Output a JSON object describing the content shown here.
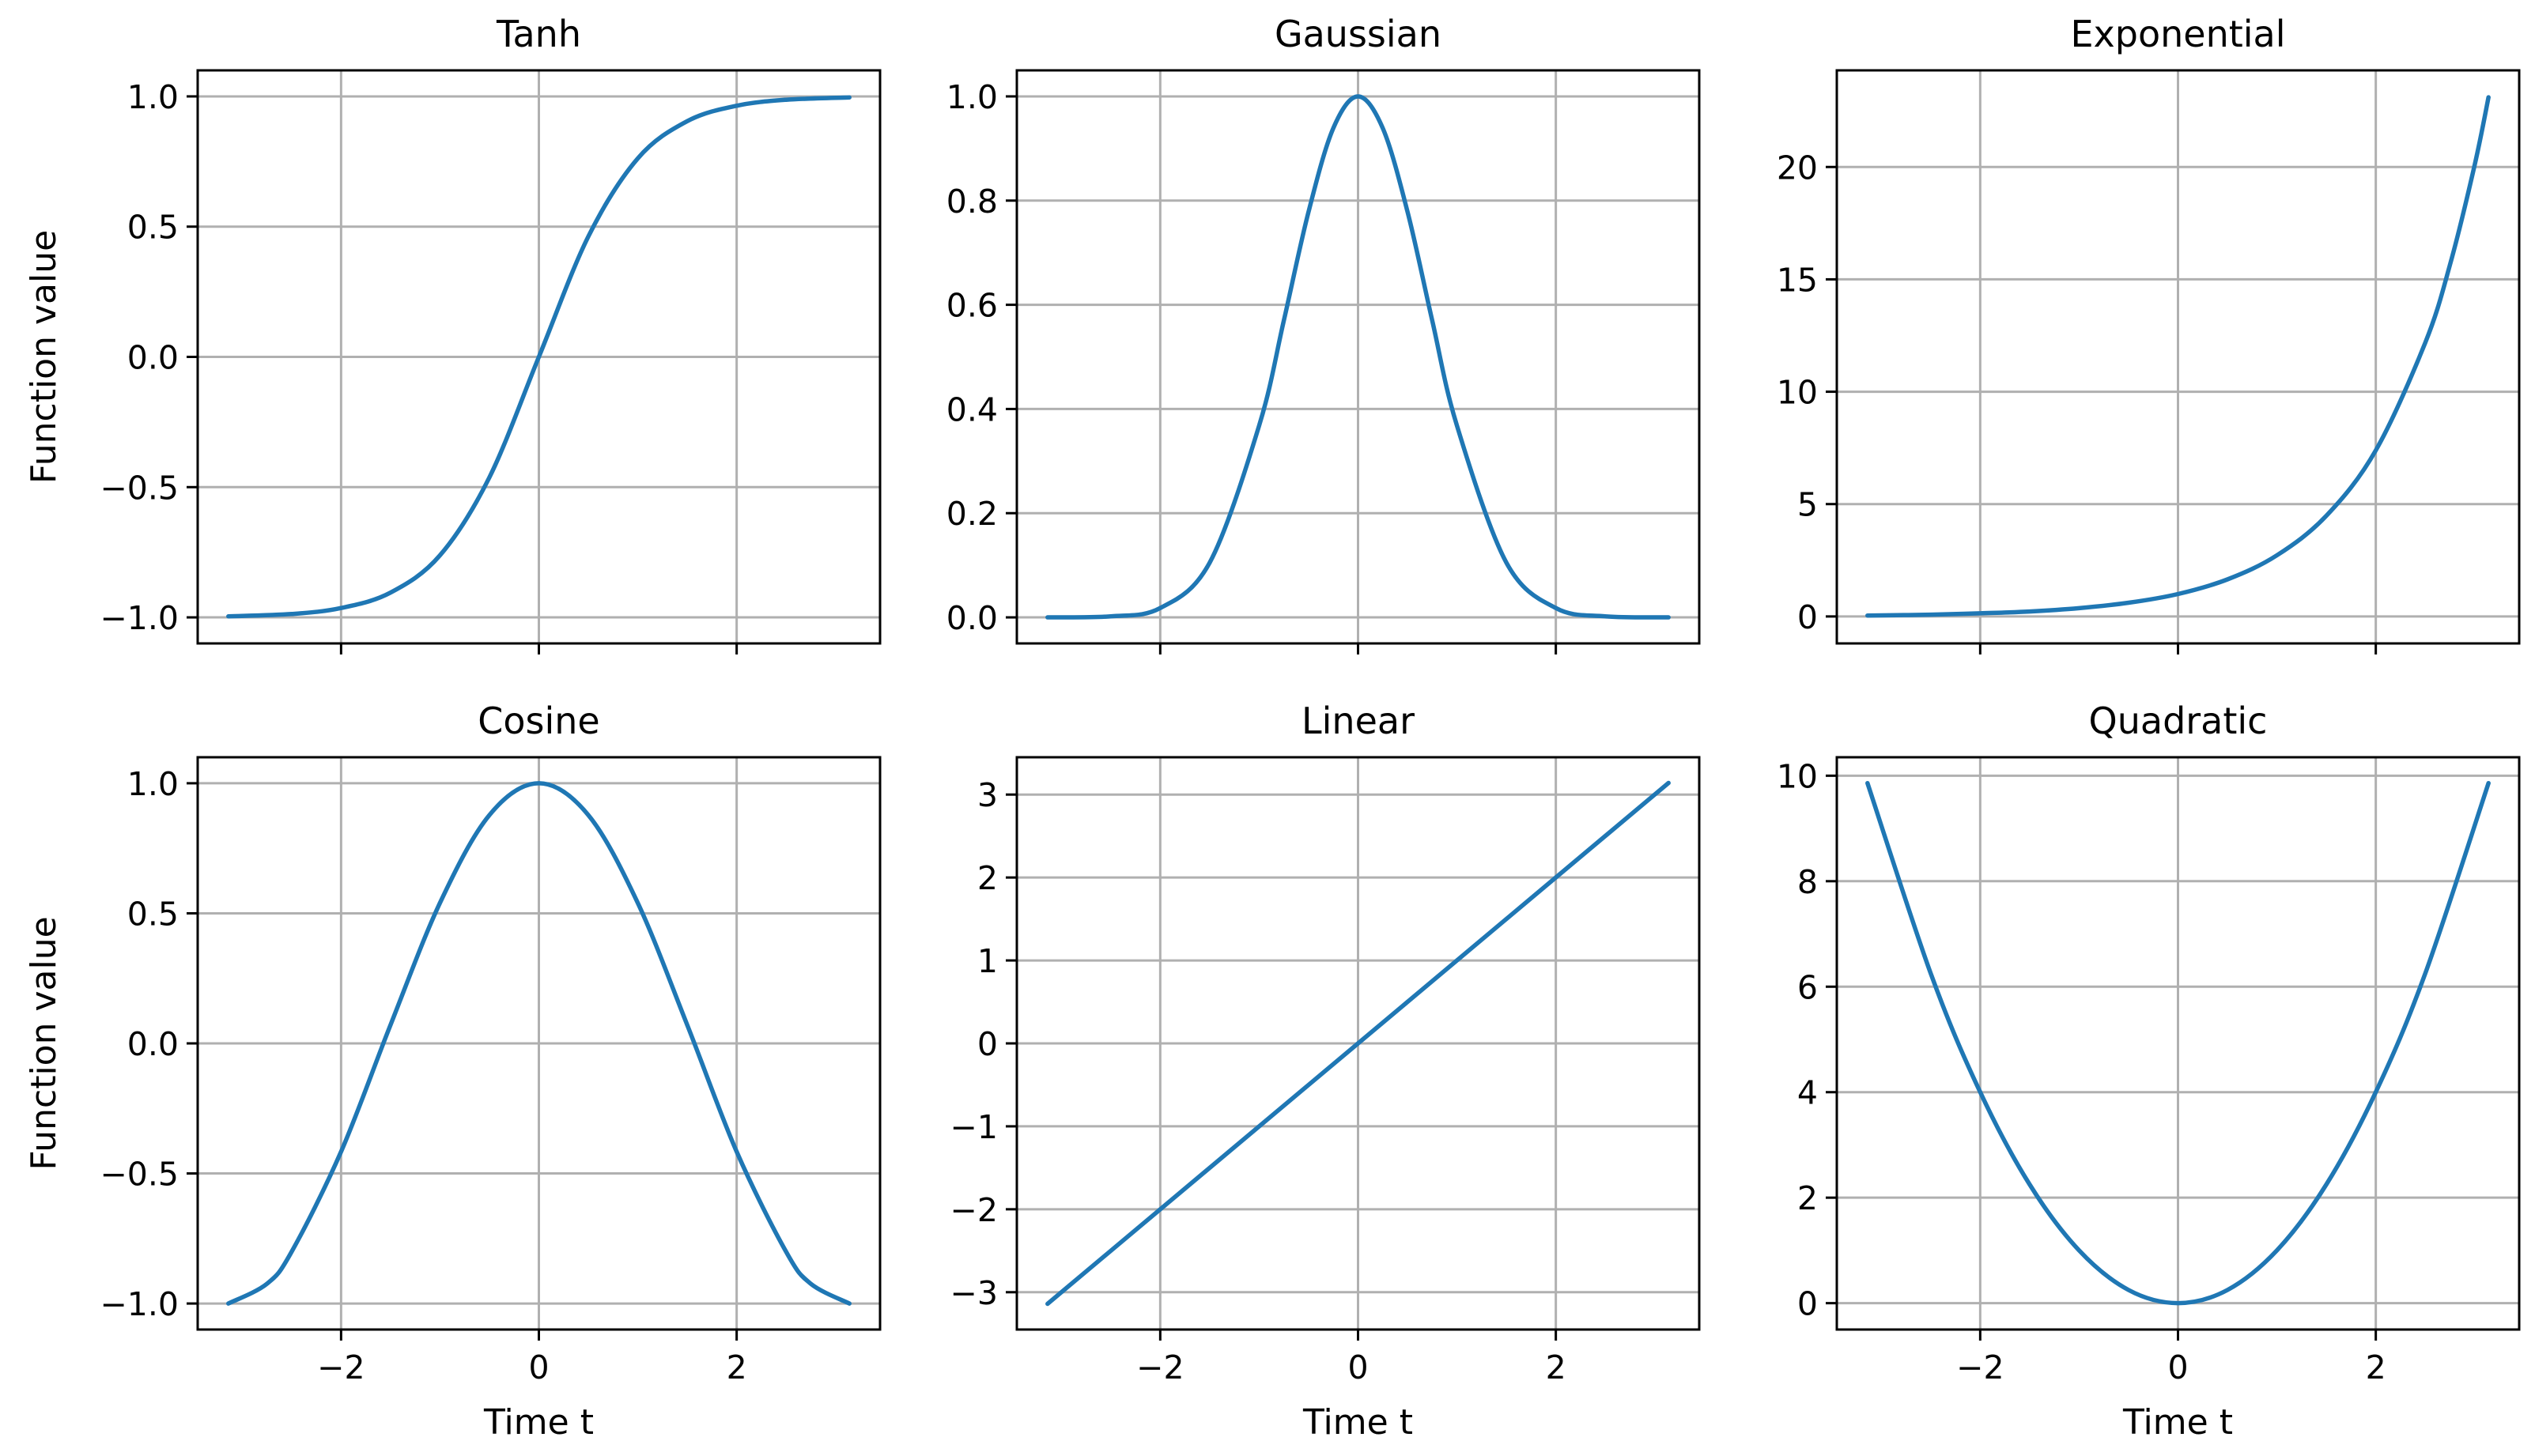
{
  "colors": {
    "line": "#1f77b4",
    "grid": "#b0b0b0",
    "axes": "#000000"
  },
  "chart_data": [
    {
      "type": "line",
      "title": "Tanh",
      "xlabel": "",
      "ylabel": "Function value",
      "xlim": [
        -3.45,
        3.45
      ],
      "ylim": [
        -1.1,
        1.1
      ],
      "xticks": [
        -2,
        0,
        2
      ],
      "xtick_labels": [],
      "yticks": [
        -1.0,
        -0.5,
        0.0,
        0.5,
        1.0
      ],
      "ytick_labels": [
        "−1.0",
        "−0.5",
        "0.0",
        "0.5",
        "1.0"
      ],
      "grid": true,
      "x": [
        -3.14,
        -2.5,
        -2.0,
        -1.5,
        -1.0,
        -0.5,
        0.0,
        0.5,
        1.0,
        1.5,
        2.0,
        2.5,
        3.14
      ],
      "y": [
        -0.996,
        -0.987,
        -0.964,
        -0.905,
        -0.762,
        -0.462,
        0.0,
        0.462,
        0.762,
        0.905,
        0.964,
        0.987,
        0.996
      ]
    },
    {
      "type": "line",
      "title": "Gaussian",
      "xlabel": "",
      "ylabel": "",
      "xlim": [
        -3.45,
        3.45
      ],
      "ylim": [
        -0.05,
        1.05
      ],
      "xticks": [
        -2,
        0,
        2
      ],
      "xtick_labels": [],
      "yticks": [
        0.0,
        0.2,
        0.4,
        0.6,
        0.8,
        1.0
      ],
      "ytick_labels": [
        "0.0",
        "0.2",
        "0.4",
        "0.6",
        "0.8",
        "1.0"
      ],
      "grid": true,
      "x": [
        -3.14,
        -2.5,
        -2.0,
        -1.5,
        -1.0,
        -0.75,
        -0.5,
        -0.25,
        0.0,
        0.25,
        0.5,
        0.75,
        1.0,
        1.5,
        2.0,
        2.5,
        3.14
      ],
      "y": [
        0.0,
        0.002,
        0.018,
        0.105,
        0.368,
        0.57,
        0.779,
        0.939,
        1.0,
        0.939,
        0.779,
        0.57,
        0.368,
        0.105,
        0.018,
        0.002,
        0.0
      ]
    },
    {
      "type": "line",
      "title": "Exponential",
      "xlabel": "",
      "ylabel": "",
      "xlim": [
        -3.45,
        3.45
      ],
      "ylim": [
        -1.2,
        24.3
      ],
      "xticks": [
        -2,
        0,
        2
      ],
      "xtick_labels": [],
      "yticks": [
        0,
        5,
        10,
        15,
        20
      ],
      "ytick_labels": [
        "0",
        "5",
        "10",
        "15",
        "20"
      ],
      "grid": true,
      "x": [
        -3.14,
        -2.5,
        -2.0,
        -1.5,
        -1.0,
        -0.5,
        0.0,
        0.5,
        1.0,
        1.5,
        2.0,
        2.5,
        2.75,
        3.0,
        3.14
      ],
      "y": [
        0.04,
        0.08,
        0.14,
        0.22,
        0.37,
        0.61,
        1.0,
        1.65,
        2.72,
        4.48,
        7.39,
        12.18,
        15.64,
        20.09,
        23.1
      ]
    },
    {
      "type": "line",
      "title": "Cosine",
      "xlabel": "Time t",
      "ylabel": "Function value",
      "xlim": [
        -3.45,
        3.45
      ],
      "ylim": [
        -1.1,
        1.1
      ],
      "xticks": [
        -2,
        0,
        2
      ],
      "xtick_labels": [
        "−2",
        "0",
        "2"
      ],
      "yticks": [
        -1.0,
        -0.5,
        0.0,
        0.5,
        1.0
      ],
      "ytick_labels": [
        "−1.0",
        "−0.5",
        "0.0",
        "0.5",
        "1.0"
      ],
      "grid": true,
      "x": [
        -3.14,
        -2.75,
        -2.5,
        -2.0,
        -1.5,
        -1.0,
        -0.5,
        0.0,
        0.5,
        1.0,
        1.5,
        2.0,
        2.5,
        2.75,
        3.14
      ],
      "y": [
        -1.0,
        -0.924,
        -0.801,
        -0.416,
        0.071,
        0.54,
        0.878,
        1.0,
        0.878,
        0.54,
        0.071,
        -0.416,
        -0.801,
        -0.924,
        -1.0
      ]
    },
    {
      "type": "line",
      "title": "Linear",
      "xlabel": "Time t",
      "ylabel": "",
      "xlim": [
        -3.45,
        3.45
      ],
      "ylim": [
        -3.45,
        3.45
      ],
      "xticks": [
        -2,
        0,
        2
      ],
      "xtick_labels": [
        "−2",
        "0",
        "2"
      ],
      "yticks": [
        -3,
        -2,
        -1,
        0,
        1,
        2,
        3
      ],
      "ytick_labels": [
        "−3",
        "−2",
        "−1",
        "0",
        "1",
        "2",
        "3"
      ],
      "grid": true,
      "x": [
        -3.14,
        3.14
      ],
      "y": [
        -3.14,
        3.14
      ]
    },
    {
      "type": "line",
      "title": "Quadratic",
      "xlabel": "Time t",
      "ylabel": "",
      "xlim": [
        -3.45,
        3.45
      ],
      "ylim": [
        -0.5,
        10.35
      ],
      "xticks": [
        -2,
        0,
        2
      ],
      "xtick_labels": [
        "−2",
        "0",
        "2"
      ],
      "yticks": [
        0,
        2,
        4,
        6,
        8,
        10
      ],
      "ytick_labels": [
        "0",
        "2",
        "4",
        "6",
        "8",
        "10"
      ],
      "grid": true,
      "x": [
        -3.14,
        -2.5,
        -2.0,
        -1.5,
        -1.0,
        -0.5,
        0.0,
        0.5,
        1.0,
        1.5,
        2.0,
        2.5,
        3.14
      ],
      "y": [
        9.86,
        6.25,
        4.0,
        2.25,
        1.0,
        0.25,
        0.0,
        0.25,
        1.0,
        2.25,
        4.0,
        6.25,
        9.86
      ]
    }
  ]
}
